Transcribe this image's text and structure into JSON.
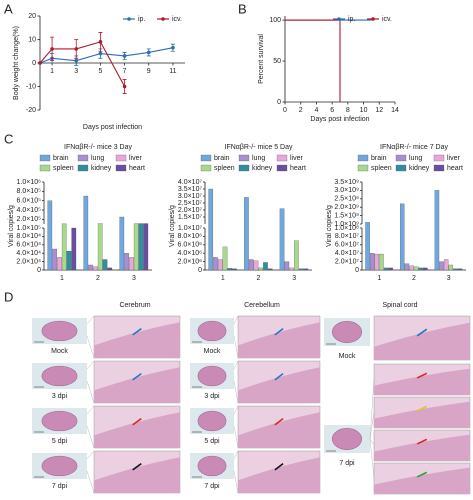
{
  "panel_labels": [
    "A",
    "B",
    "C",
    "D"
  ],
  "chart_data": [
    {
      "type": "line",
      "xlabel": "Days post infection",
      "ylabel": "Body weight change(%)",
      "x": [
        0,
        1,
        3,
        5,
        7,
        9,
        11
      ],
      "xlim": [
        0,
        12
      ],
      "xticks": [
        1,
        3,
        5,
        7,
        9,
        11
      ],
      "ylim": [
        -20,
        20
      ],
      "yticks": [
        -20,
        -10,
        0,
        10,
        20
      ],
      "legend": "upper right",
      "series": [
        {
          "name": "ip.",
          "color": "#2a6eb5",
          "values": [
            0,
            2,
            1,
            4,
            3,
            4.5,
            6.5
          ],
          "errors": [
            0,
            2,
            2,
            2,
            1.5,
            1.5,
            1.5
          ]
        },
        {
          "name": "icv.",
          "color": "#b2182b",
          "values": [
            0,
            6,
            6,
            9,
            -10,
            null,
            null
          ],
          "errors": [
            0,
            5,
            4,
            4,
            3,
            null,
            null
          ]
        }
      ]
    },
    {
      "type": "step",
      "xlabel": "Days post infection",
      "ylabel": "Percent survival",
      "xlim": [
        0,
        14
      ],
      "xticks": [
        0,
        2,
        4,
        6,
        8,
        10,
        12,
        14
      ],
      "ylim": [
        0,
        105
      ],
      "yticks": [
        0,
        50,
        100
      ],
      "legend": "upper right",
      "series": [
        {
          "name": "ip.",
          "color": "#2a6eb5",
          "x": [
            0,
            11
          ],
          "values": [
            100,
            100
          ]
        },
        {
          "name": "icv.",
          "color": "#b2182b",
          "x": [
            0,
            7,
            7
          ],
          "values": [
            100,
            100,
            0
          ]
        }
      ]
    },
    {
      "type": "bar",
      "title": "IFNαβR-/- mice 3 Day",
      "ylabel": "Viral copies/g",
      "categories": [
        "1",
        "2",
        "3"
      ],
      "ylim": [
        0,
        1000000
      ],
      "ybreak": [
        100000,
        100000
      ],
      "yticks": [
        0,
        {
          "value": 20000,
          "label": "2.0×10⁴"
        },
        {
          "value": 40000,
          "label": "4.0×10⁴"
        },
        {
          "value": 60000,
          "label": "6.0×10⁴"
        },
        {
          "value": 80000,
          "label": "8.0×10⁴"
        },
        {
          "value": 100000,
          "label": "1.0×10⁵"
        },
        {
          "value": 200000,
          "label": "2.0×10⁵"
        },
        {
          "value": 400000,
          "label": "4.0×10⁵"
        },
        {
          "value": 600000,
          "label": "6.0×10⁵"
        },
        {
          "value": 800000,
          "label": "8.0×10⁵"
        },
        {
          "value": 1000000,
          "label": "1.0×10⁶"
        }
      ],
      "series": [
        {
          "name": "brain",
          "color": "#6fa8dc",
          "values": [
            600000,
            700000,
            250000
          ]
        },
        {
          "name": "lung",
          "color": "#a98fd0",
          "values": [
            50000,
            12000,
            40000
          ]
        },
        {
          "name": "liver",
          "color": "#e9a6d9",
          "values": [
            30000,
            8000,
            30000
          ]
        },
        {
          "name": "spleen",
          "color": "#a8d88a",
          "values": [
            105000,
            110000,
            110000
          ]
        },
        {
          "name": "kidney",
          "color": "#2f8fa0",
          "values": [
            45000,
            25000,
            110000
          ]
        },
        {
          "name": "heart",
          "color": "#6b4ea0",
          "values": [
            100000,
            5000,
            110000
          ]
        }
      ]
    },
    {
      "type": "bar",
      "title": "IFNαβR-/- mice 5 Day",
      "ylabel": "Viral copies/g",
      "categories": [
        "1",
        "2",
        "3"
      ],
      "ylim": [
        0,
        40000000
      ],
      "ybreak": [
        10000000,
        10000000
      ],
      "yticks": [
        0,
        {
          "value": 2000000,
          "label": "2.0×10⁶"
        },
        {
          "value": 4000000,
          "label": "4.0×10⁶"
        },
        {
          "value": 6000000,
          "label": "6.0×10⁶"
        },
        {
          "value": 8000000,
          "label": "8.0×10⁶"
        },
        {
          "value": 10000000,
          "label": "1.0×10⁷"
        },
        {
          "value": 15000000,
          "label": "1.5×10⁷"
        },
        {
          "value": 20000000,
          "label": "2.0×10⁷"
        },
        {
          "value": 25000000,
          "label": "2.5×10⁷"
        },
        {
          "value": 30000000,
          "label": "3.0×10⁷"
        },
        {
          "value": 35000000,
          "label": "3.5×10⁷"
        },
        {
          "value": 40000000,
          "label": "4.0×10⁷"
        }
      ],
      "series": [
        {
          "name": "brain",
          "color": "#6fa8dc",
          "values": [
            35000000,
            29000000,
            21000000
          ]
        },
        {
          "name": "lung",
          "color": "#a98fd0",
          "values": [
            3000000,
            2500000,
            2000000
          ]
        },
        {
          "name": "liver",
          "color": "#e9a6d9",
          "values": [
            2500000,
            2200000,
            500000
          ]
        },
        {
          "name": "spleen",
          "color": "#a8d88a",
          "values": [
            5500000,
            500000,
            7000000
          ]
        },
        {
          "name": "kidney",
          "color": "#2f8fa0",
          "values": [
            400000,
            1800000,
            300000
          ]
        },
        {
          "name": "heart",
          "color": "#6b4ea0",
          "values": [
            300000,
            300000,
            300000
          ]
        }
      ]
    },
    {
      "type": "bar",
      "title": "IFNαβR-/- mice 7 Day",
      "ylabel": "Viral copies/g",
      "categories": [
        "1",
        "2",
        "3"
      ],
      "ylim": [
        0,
        3500000000
      ],
      "ybreak": [
        100000000,
        1000000000
      ],
      "yticks": [
        0,
        {
          "value": 20000000,
          "label": "2.0×10⁷"
        },
        {
          "value": 40000000,
          "label": "4.0×10⁷"
        },
        {
          "value": 60000000,
          "label": "6.0×10⁷"
        },
        {
          "value": 80000000,
          "label": "8.0×10⁷"
        },
        {
          "value": 100000000,
          "label": "1.0×10⁸"
        },
        {
          "value": 1000000000,
          "label": "1.0×10⁹"
        },
        {
          "value": 1500000000,
          "label": "1.5×10⁹"
        },
        {
          "value": 2000000000,
          "label": "2.0×10⁹"
        },
        {
          "value": 2500000000,
          "label": "2.5×10⁹"
        },
        {
          "value": 3000000000,
          "label": "3.0×10⁹"
        },
        {
          "value": 3500000000,
          "label": "3.5×10⁹"
        }
      ],
      "series": [
        {
          "name": "brain",
          "color": "#6fa8dc",
          "values": [
            1100000000,
            2200000000,
            3000000000
          ]
        },
        {
          "name": "lung",
          "color": "#a98fd0",
          "values": [
            40000000,
            15000000,
            20000000
          ]
        },
        {
          "name": "liver",
          "color": "#e9a6d9",
          "values": [
            38000000,
            10000000,
            25000000
          ]
        },
        {
          "name": "spleen",
          "color": "#a8d88a",
          "values": [
            38000000,
            8000000,
            12000000
          ]
        },
        {
          "name": "kidney",
          "color": "#2f8fa0",
          "values": [
            5000000,
            5000000,
            3000000
          ]
        },
        {
          "name": "heart",
          "color": "#6b4ea0",
          "values": [
            5000000,
            5000000,
            3000000
          ]
        }
      ]
    }
  ],
  "histology": {
    "columns": [
      {
        "title": "Cerebrum",
        "rows": [
          "Mock",
          "3 dpi",
          "5 dpi",
          "7 dpi"
        ]
      },
      {
        "title": "Cerebellum",
        "rows": [
          "Mock",
          "3 dpi",
          "5 dpi",
          "7 dpi"
        ]
      },
      {
        "title": "Spinal cord",
        "rows": [
          "Mock",
          "7 dpi"
        ]
      }
    ]
  }
}
